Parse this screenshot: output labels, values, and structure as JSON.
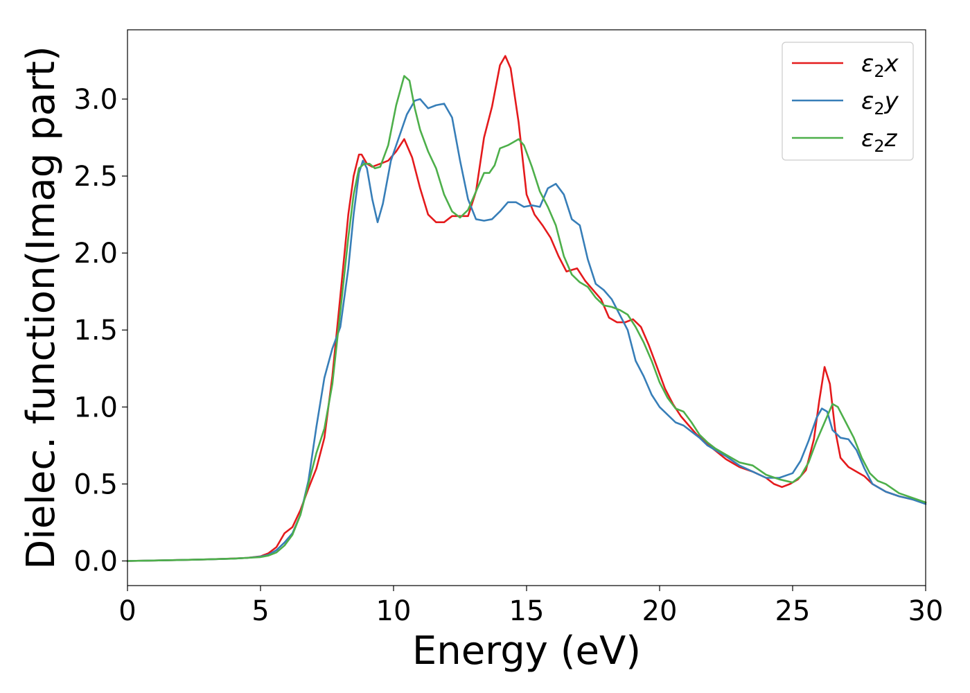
{
  "chart_data": {
    "type": "line",
    "title": "",
    "xlabel": "Energy (eV)",
    "ylabel": "Dielec. function(Imag part)",
    "xlim": [
      0,
      30
    ],
    "ylim": [
      -0.16,
      3.45
    ],
    "xticks": [
      0,
      5,
      10,
      15,
      20,
      25,
      30
    ],
    "yticks": [
      0.0,
      0.5,
      1.0,
      1.5,
      2.0,
      2.5,
      3.0
    ],
    "xtick_labels": [
      "0",
      "5",
      "10",
      "15",
      "20",
      "25",
      "30"
    ],
    "ytick_labels": [
      "0.0",
      "0.5",
      "1.0",
      "1.5",
      "2.0",
      "2.5",
      "3.0"
    ],
    "grid": false,
    "legend_position": "top-right",
    "series": [
      {
        "name": "ε₂x",
        "legend": {
          "base": "ε",
          "sub": "2",
          "axis": "x"
        },
        "color": "#e41a1c",
        "x": [
          0,
          1,
          2,
          3,
          4,
          4.5,
          5,
          5.3,
          5.6,
          5.9,
          6.2,
          6.5,
          6.8,
          7.1,
          7.4,
          7.7,
          8.0,
          8.3,
          8.5,
          8.7,
          8.8,
          9.0,
          9.2,
          9.5,
          9.8,
          10.1,
          10.4,
          10.7,
          11.0,
          11.3,
          11.6,
          11.9,
          12.2,
          12.5,
          12.8,
          13.1,
          13.4,
          13.7,
          14.0,
          14.2,
          14.4,
          14.7,
          15.0,
          15.3,
          15.6,
          15.9,
          16.2,
          16.5,
          16.9,
          17.2,
          17.5,
          17.8,
          18.1,
          18.4,
          18.7,
          19.0,
          19.3,
          19.6,
          19.9,
          20.2,
          20.5,
          20.8,
          21.1,
          21.4,
          21.7,
          22.0,
          22.5,
          23.0,
          23.5,
          24.0,
          24.3,
          24.6,
          24.9,
          25.2,
          25.5,
          25.8,
          26.0,
          26.2,
          26.4,
          26.6,
          26.8,
          27.1,
          27.4,
          27.7,
          28.0,
          28.5,
          29.0,
          29.5,
          30.0
        ],
        "y": [
          0.0,
          0.003,
          0.006,
          0.01,
          0.016,
          0.02,
          0.03,
          0.05,
          0.09,
          0.18,
          0.22,
          0.33,
          0.47,
          0.6,
          0.8,
          1.2,
          1.72,
          2.25,
          2.5,
          2.64,
          2.64,
          2.58,
          2.56,
          2.58,
          2.6,
          2.66,
          2.74,
          2.62,
          2.42,
          2.25,
          2.2,
          2.2,
          2.24,
          2.24,
          2.24,
          2.4,
          2.75,
          2.95,
          3.22,
          3.28,
          3.2,
          2.85,
          2.38,
          2.25,
          2.18,
          2.1,
          1.98,
          1.88,
          1.9,
          1.82,
          1.76,
          1.7,
          1.58,
          1.55,
          1.55,
          1.57,
          1.52,
          1.4,
          1.26,
          1.12,
          1.02,
          0.94,
          0.88,
          0.82,
          0.78,
          0.73,
          0.66,
          0.61,
          0.58,
          0.54,
          0.5,
          0.48,
          0.5,
          0.53,
          0.59,
          0.79,
          1.04,
          1.26,
          1.15,
          0.85,
          0.67,
          0.61,
          0.58,
          0.55,
          0.5,
          0.45,
          0.42,
          0.4,
          0.38
        ]
      },
      {
        "name": "ε₂y",
        "legend": {
          "base": "ε",
          "sub": "2",
          "axis": "y"
        },
        "color": "#377eb8",
        "x": [
          0,
          1,
          2,
          3,
          4,
          4.5,
          5,
          5.3,
          5.6,
          5.9,
          6.2,
          6.5,
          6.8,
          7.1,
          7.4,
          7.7,
          8.0,
          8.3,
          8.5,
          8.7,
          8.85,
          9.0,
          9.2,
          9.4,
          9.6,
          9.9,
          10.2,
          10.5,
          10.8,
          11.0,
          11.3,
          11.6,
          11.9,
          12.2,
          12.5,
          12.8,
          13.1,
          13.4,
          13.7,
          14.0,
          14.3,
          14.6,
          14.9,
          15.2,
          15.5,
          15.8,
          16.1,
          16.4,
          16.7,
          17.0,
          17.3,
          17.6,
          17.9,
          18.2,
          18.5,
          18.8,
          19.1,
          19.4,
          19.7,
          20.0,
          20.3,
          20.6,
          20.9,
          21.2,
          21.5,
          21.8,
          22.1,
          22.5,
          23.0,
          23.5,
          24.0,
          24.5,
          25.0,
          25.3,
          25.6,
          25.9,
          26.1,
          26.3,
          26.5,
          26.8,
          27.1,
          27.4,
          27.7,
          28.0,
          28.5,
          29.0,
          29.5,
          30.0
        ],
        "y": [
          0.0,
          0.003,
          0.006,
          0.01,
          0.015,
          0.02,
          0.028,
          0.04,
          0.07,
          0.12,
          0.18,
          0.3,
          0.52,
          0.87,
          1.19,
          1.38,
          1.52,
          1.9,
          2.25,
          2.52,
          2.6,
          2.55,
          2.35,
          2.2,
          2.32,
          2.6,
          2.75,
          2.9,
          2.99,
          3.0,
          2.94,
          2.96,
          2.97,
          2.88,
          2.6,
          2.35,
          2.22,
          2.21,
          2.22,
          2.27,
          2.33,
          2.33,
          2.3,
          2.31,
          2.3,
          2.42,
          2.45,
          2.38,
          2.22,
          2.18,
          1.96,
          1.8,
          1.76,
          1.7,
          1.6,
          1.5,
          1.3,
          1.2,
          1.08,
          1.0,
          0.95,
          0.9,
          0.88,
          0.84,
          0.8,
          0.75,
          0.72,
          0.68,
          0.62,
          0.58,
          0.54,
          0.54,
          0.57,
          0.65,
          0.78,
          0.93,
          0.99,
          0.97,
          0.85,
          0.8,
          0.79,
          0.72,
          0.6,
          0.5,
          0.45,
          0.42,
          0.4,
          0.37
        ]
      },
      {
        "name": "ε₂z",
        "legend": {
          "base": "ε",
          "sub": "2",
          "axis": "z"
        },
        "color": "#4daf4a",
        "x": [
          0,
          1,
          2,
          3,
          4,
          4.5,
          5,
          5.3,
          5.6,
          5.9,
          6.2,
          6.5,
          6.8,
          7.1,
          7.4,
          7.7,
          8.0,
          8.3,
          8.5,
          8.7,
          8.9,
          9.1,
          9.3,
          9.5,
          9.8,
          10.1,
          10.4,
          10.6,
          10.8,
          11.0,
          11.3,
          11.6,
          11.9,
          12.2,
          12.5,
          12.8,
          13.1,
          13.4,
          13.6,
          13.8,
          14.0,
          14.3,
          14.5,
          14.7,
          14.9,
          15.2,
          15.5,
          15.8,
          16.1,
          16.4,
          16.7,
          17.0,
          17.3,
          17.6,
          17.9,
          18.2,
          18.5,
          18.8,
          19.1,
          19.4,
          19.7,
          20.0,
          20.3,
          20.6,
          20.9,
          21.2,
          21.5,
          21.8,
          22.1,
          22.5,
          23.0,
          23.5,
          24.0,
          24.5,
          25.0,
          25.3,
          25.6,
          25.9,
          26.2,
          26.5,
          26.7,
          27.0,
          27.3,
          27.6,
          27.9,
          28.2,
          28.5,
          29.0,
          29.5,
          30.0
        ],
        "y": [
          0.0,
          0.003,
          0.006,
          0.01,
          0.015,
          0.02,
          0.025,
          0.035,
          0.055,
          0.1,
          0.17,
          0.3,
          0.5,
          0.7,
          0.86,
          1.15,
          1.62,
          2.1,
          2.38,
          2.55,
          2.58,
          2.58,
          2.55,
          2.56,
          2.7,
          2.96,
          3.15,
          3.12,
          2.94,
          2.8,
          2.66,
          2.55,
          2.38,
          2.27,
          2.23,
          2.28,
          2.4,
          2.52,
          2.52,
          2.57,
          2.68,
          2.7,
          2.72,
          2.74,
          2.7,
          2.56,
          2.4,
          2.3,
          2.18,
          1.98,
          1.86,
          1.81,
          1.78,
          1.71,
          1.66,
          1.65,
          1.63,
          1.6,
          1.52,
          1.42,
          1.3,
          1.16,
          1.06,
          0.99,
          0.97,
          0.9,
          0.82,
          0.77,
          0.73,
          0.69,
          0.64,
          0.62,
          0.56,
          0.53,
          0.51,
          0.55,
          0.64,
          0.78,
          0.9,
          1.02,
          1.0,
          0.9,
          0.8,
          0.67,
          0.57,
          0.52,
          0.5,
          0.44,
          0.41,
          0.38
        ]
      }
    ]
  }
}
